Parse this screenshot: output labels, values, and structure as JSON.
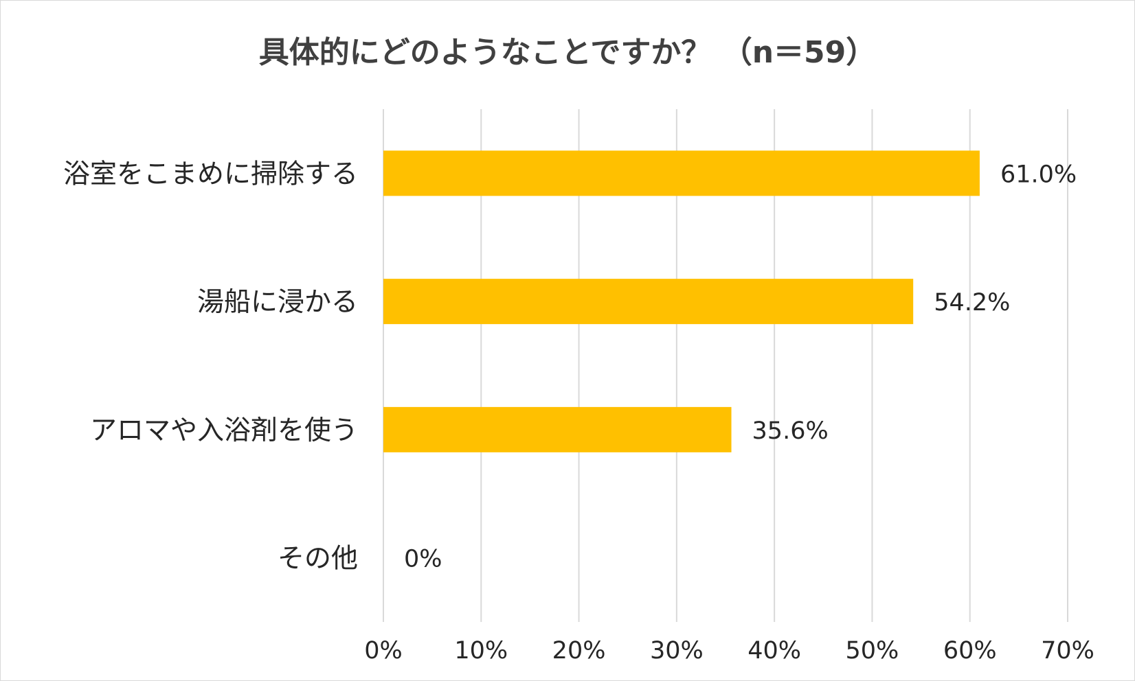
{
  "chart_data": {
    "type": "bar",
    "orientation": "horizontal",
    "title": "具体的にどのようなことですか？ （n＝59）",
    "categories": [
      "浴室をこまめに掃除する",
      "湯船に浸かる",
      "アロマや入浴剤を使う",
      "その他"
    ],
    "values": [
      61.0,
      54.2,
      35.6,
      0
    ],
    "data_labels": [
      "61.0%",
      "54.2%",
      "35.6%",
      "0%"
    ],
    "xlim": [
      0,
      70
    ],
    "xticks": [
      0,
      10,
      20,
      30,
      40,
      50,
      60,
      70
    ],
    "xtick_labels": [
      "0%",
      "10%",
      "20%",
      "30%",
      "40%",
      "50%",
      "60%",
      "70%"
    ],
    "grid": true,
    "legend": "none",
    "bar_color": "#FFC000"
  }
}
